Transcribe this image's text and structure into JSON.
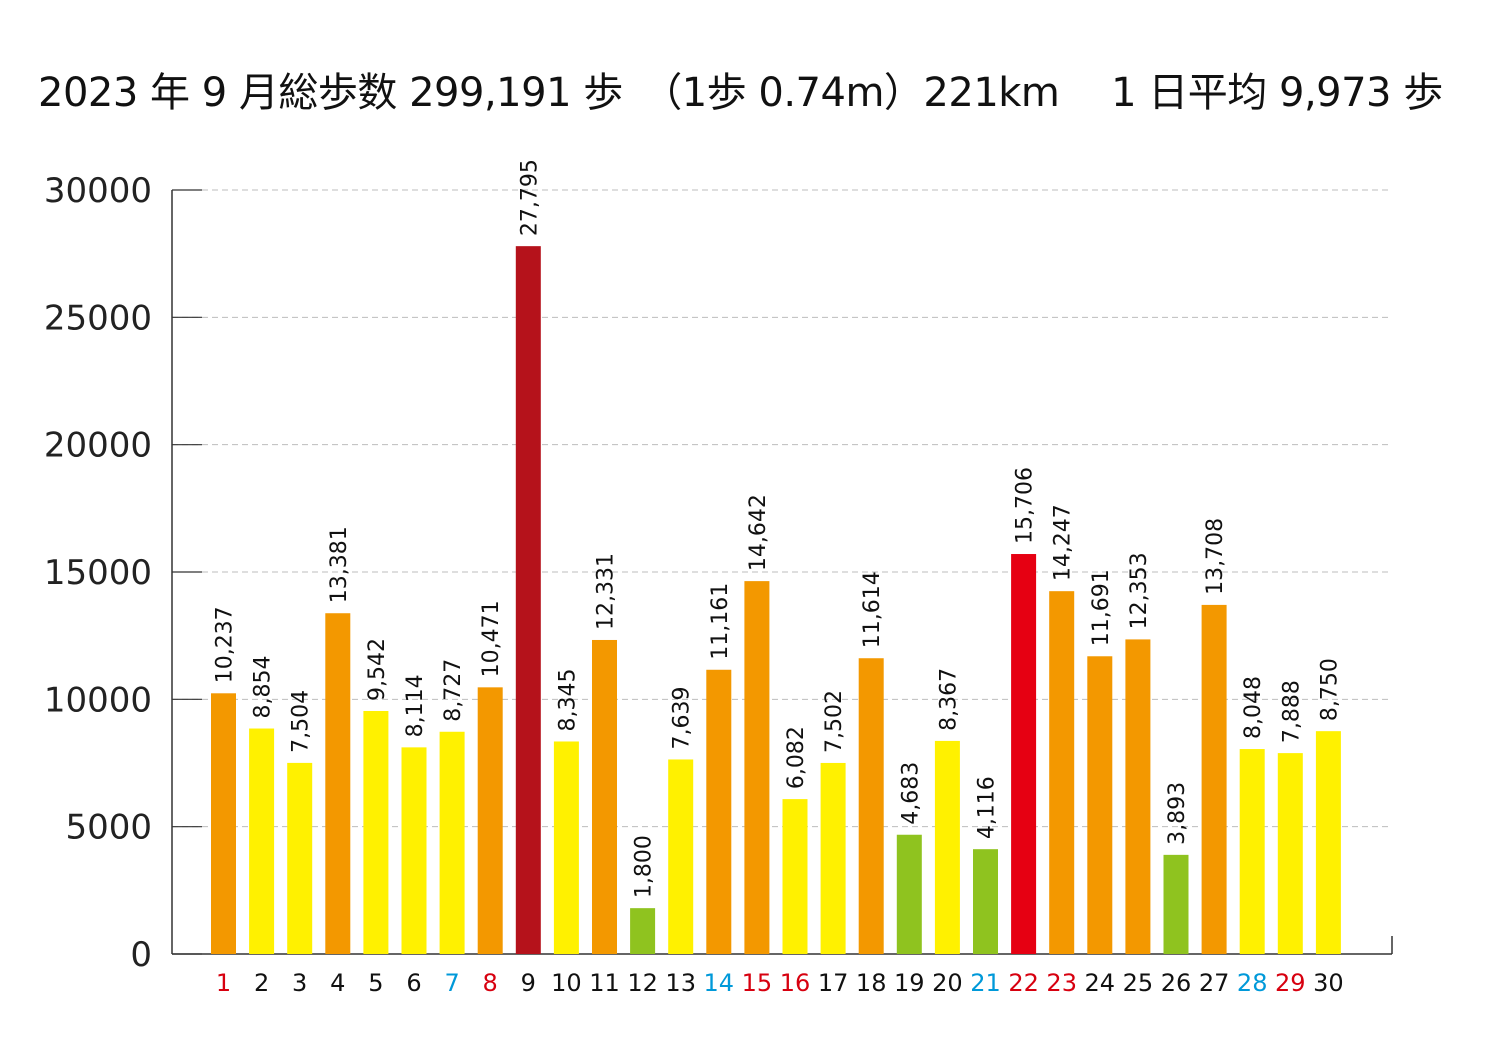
{
  "chart_data": {
    "type": "bar",
    "title": "2023 年 9 月総歩数 299,191 歩　（1歩  0.74m）221km　 1 日平均 9,973 歩",
    "xlabel": "",
    "ylabel": "",
    "ylim": [
      0,
      30000
    ],
    "yticks": [
      "0",
      "5000",
      "10000",
      "15000",
      "20000",
      "25000",
      "30000"
    ],
    "grid": true,
    "categories": [
      "1",
      "2",
      "3",
      "4",
      "5",
      "6",
      "7",
      "8",
      "9",
      "10",
      "11",
      "12",
      "13",
      "14",
      "15",
      "16",
      "17",
      "18",
      "19",
      "20",
      "21",
      "22",
      "23",
      "24",
      "25",
      "26",
      "27",
      "28",
      "29",
      "30"
    ],
    "values": [
      10237,
      8854,
      7504,
      13381,
      9542,
      8114,
      8727,
      10471,
      27795,
      8345,
      12331,
      1800,
      7639,
      11161,
      14642,
      6082,
      7502,
      11614,
      4683,
      8367,
      4116,
      15706,
      14247,
      11691,
      12353,
      3893,
      13708,
      8048,
      7888,
      8750
    ],
    "value_labels": [
      "10,237",
      "8,854",
      "7,504",
      "13,381",
      "9,542",
      "8,114",
      "8,727",
      "10,471",
      "27,795",
      "8,345",
      "12,331",
      "1,800",
      "7,639",
      "11,161",
      "14,642",
      "6,082",
      "7,502",
      "11,614",
      "4,683",
      "8,367",
      "4,116",
      "15,706",
      "14,247",
      "11,691",
      "12,353",
      "3,893",
      "13,708",
      "8,048",
      "7,888",
      "8,750"
    ],
    "bar_colors": [
      "#f39800",
      "#fff100",
      "#fff100",
      "#f39800",
      "#fff100",
      "#fff100",
      "#fff100",
      "#f39800",
      "#b5121b",
      "#fff100",
      "#f39800",
      "#8fc31f",
      "#fff100",
      "#f39800",
      "#f39800",
      "#fff100",
      "#fff100",
      "#f39800",
      "#8fc31f",
      "#fff100",
      "#8fc31f",
      "#e60012",
      "#f39800",
      "#f39800",
      "#f39800",
      "#8fc31f",
      "#f39800",
      "#fff100",
      "#fff100",
      "#fff100"
    ],
    "category_colors": [
      "#d7000f",
      "#111111",
      "#111111",
      "#111111",
      "#111111",
      "#111111",
      "#0099d9",
      "#d7000f",
      "#111111",
      "#111111",
      "#111111",
      "#111111",
      "#111111",
      "#0099d9",
      "#d7000f",
      "#d7000f",
      "#111111",
      "#111111",
      "#111111",
      "#111111",
      "#0099d9",
      "#d7000f",
      "#d7000f",
      "#111111",
      "#111111",
      "#111111",
      "#111111",
      "#0099d9",
      "#d7000f",
      "#111111"
    ]
  }
}
